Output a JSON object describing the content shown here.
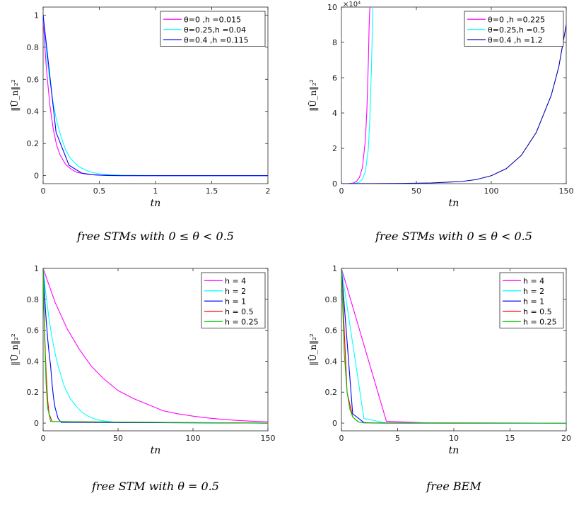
{
  "chart_data": [
    {
      "type": "line",
      "caption": "free STMs with 0 ≤ θ < 0.5",
      "xlabel": "t_n",
      "ylabel": "‖Ū_n‖₂²",
      "xlim": [
        0,
        2
      ],
      "ylim": [
        -0.05,
        1.05
      ],
      "xticks": [
        0,
        0.5,
        1,
        1.5,
        2
      ],
      "xtick_labels": [
        "0",
        "0.5",
        "1",
        "1.5",
        "2"
      ],
      "yticks": [
        0,
        0.2,
        0.4,
        0.6,
        0.8,
        1
      ],
      "ytick_labels": [
        "0",
        "0.2",
        "0.4",
        "0.6",
        "0.8",
        "1"
      ],
      "y_multiplier": "",
      "legend_position": "top-right",
      "grid": false,
      "series": [
        {
          "name": "θ=0     ,h =0.015",
          "color": "#ff00ff",
          "x": [
            0,
            0.015,
            0.03,
            0.06,
            0.09,
            0.12,
            0.15,
            0.2,
            0.25,
            0.3,
            0.4,
            0.5,
            0.7,
            1.0,
            1.5,
            2.0
          ],
          "y": [
            1.0,
            0.81,
            0.66,
            0.44,
            0.29,
            0.19,
            0.13,
            0.07,
            0.04,
            0.02,
            0.008,
            0.003,
            0.001,
            0,
            0,
            0
          ]
        },
        {
          "name": "θ=0.25,h =0.04",
          "color": "#00ffff",
          "x": [
            0,
            0.04,
            0.08,
            0.12,
            0.16,
            0.2,
            0.24,
            0.28,
            0.32,
            0.4,
            0.5,
            0.7,
            1.0,
            1.5,
            2.0
          ],
          "y": [
            1.0,
            0.7,
            0.49,
            0.34,
            0.24,
            0.16,
            0.11,
            0.08,
            0.055,
            0.027,
            0.01,
            0.002,
            0,
            0,
            0
          ]
        },
        {
          "name": "θ=0.4   ,h =0.115",
          "color": "#0000ff",
          "x": [
            0,
            0.115,
            0.23,
            0.345,
            0.46,
            0.575,
            0.69,
            0.805,
            1.0,
            1.5,
            2.0
          ],
          "y": [
            1.0,
            0.27,
            0.065,
            0.015,
            0.004,
            0.001,
            0,
            0,
            0,
            0,
            0
          ]
        }
      ]
    },
    {
      "type": "line",
      "caption": "free STMs with 0 ≤ θ < 0.5",
      "xlabel": "t_n",
      "ylabel": "‖Ū_n‖₂²",
      "xlim": [
        0,
        150
      ],
      "ylim": [
        0,
        100000
      ],
      "xticks": [
        0,
        50,
        100,
        150
      ],
      "xtick_labels": [
        "0",
        "50",
        "100",
        "150"
      ],
      "yticks": [
        0,
        20000,
        40000,
        60000,
        80000,
        100000
      ],
      "ytick_labels": [
        "0",
        "2",
        "4",
        "6",
        "8",
        "10"
      ],
      "y_multiplier": "×10⁴",
      "legend_position": "top-right",
      "grid": false,
      "series": [
        {
          "name": "θ=0     ,h =0.225",
          "color": "#ff00ff",
          "x": [
            0,
            5,
            8,
            10,
            12,
            14,
            16,
            17,
            18,
            18.5,
            19
          ],
          "y": [
            0,
            50,
            400,
            1200,
            3500,
            9000,
            25000,
            42000,
            70000,
            90000,
            100000
          ]
        },
        {
          "name": "θ=0.25,h =0.5",
          "color": "#00ffff",
          "x": [
            0,
            6,
            10,
            12,
            14,
            16,
            18,
            19,
            20,
            21
          ],
          "y": [
            0,
            50,
            300,
            900,
            2500,
            7000,
            20000,
            38000,
            65000,
            100000
          ]
        },
        {
          "name": "θ=0.4   ,h =1.2",
          "color": "#0000aa",
          "x": [
            0,
            20,
            40,
            60,
            80,
            90,
            100,
            110,
            120,
            130,
            140,
            145,
            150
          ],
          "y": [
            0,
            50,
            150,
            400,
            1200,
            2300,
            4500,
            8500,
            16000,
            29000,
            50000,
            66000,
            90000
          ]
        }
      ]
    },
    {
      "type": "line",
      "caption": "free STM with θ = 0.5",
      "xlabel": "t_n",
      "ylabel": "‖Ū_n‖₂²",
      "xlim": [
        0,
        150
      ],
      "ylim": [
        -0.05,
        1
      ],
      "xticks": [
        0,
        50,
        100,
        150
      ],
      "xtick_labels": [
        "0",
        "50",
        "100",
        "150"
      ],
      "yticks": [
        0,
        0.2,
        0.4,
        0.6,
        0.8,
        1
      ],
      "ytick_labels": [
        "0",
        "0.2",
        "0.4",
        "0.6",
        "0.8",
        "1"
      ],
      "y_multiplier": "",
      "legend_position": "top-right",
      "grid": false,
      "series": [
        {
          "name": "h = 4",
          "color": "#ff00ff",
          "x": [
            0,
            8,
            16,
            24,
            32,
            40,
            50,
            60,
            70,
            80,
            90,
            100,
            110,
            120,
            130,
            140,
            150
          ],
          "y": [
            1.0,
            0.78,
            0.61,
            0.48,
            0.37,
            0.29,
            0.21,
            0.16,
            0.12,
            0.08,
            0.06,
            0.045,
            0.033,
            0.024,
            0.017,
            0.012,
            0.008
          ]
        },
        {
          "name": "h = 2",
          "color": "#00ffff",
          "x": [
            0,
            2,
            4,
            6,
            8,
            10,
            14,
            18,
            22,
            26,
            30,
            35,
            40,
            50,
            150
          ],
          "y": [
            1.0,
            0.82,
            0.67,
            0.55,
            0.45,
            0.37,
            0.24,
            0.16,
            0.11,
            0.07,
            0.045,
            0.025,
            0.014,
            0.004,
            0
          ]
        },
        {
          "name": "h = 1",
          "color": "#0000ff",
          "x": [
            0,
            1,
            2,
            3,
            4,
            5,
            6,
            7,
            8,
            10,
            12,
            150
          ],
          "y": [
            1.0,
            0.82,
            0.67,
            0.55,
            0.45,
            0.37,
            0.25,
            0.16,
            0.1,
            0.03,
            0.005,
            0
          ]
        },
        {
          "name": "h = 0.5",
          "color": "#ff0000",
          "x": [
            0,
            0.5,
            1,
            1.5,
            2,
            3,
            4,
            6,
            150
          ],
          "y": [
            1.0,
            0.8,
            0.6,
            0.45,
            0.33,
            0.15,
            0.06,
            0.01,
            0
          ]
        },
        {
          "name": "h = 0.25",
          "color": "#00cc00",
          "x": [
            0,
            0.5,
            1,
            1.5,
            2,
            3,
            5,
            150
          ],
          "y": [
            1.0,
            0.75,
            0.55,
            0.4,
            0.25,
            0.1,
            0.01,
            0
          ]
        }
      ]
    },
    {
      "type": "line",
      "caption": "free BEM",
      "xlabel": "t_n",
      "ylabel": "‖Ū_n‖₂²",
      "xlim": [
        0,
        20
      ],
      "ylim": [
        -0.05,
        1
      ],
      "xticks": [
        0,
        5,
        10,
        15,
        20
      ],
      "xtick_labels": [
        "0",
        "5",
        "10",
        "15",
        "20"
      ],
      "yticks": [
        0,
        0.2,
        0.4,
        0.6,
        0.8,
        1
      ],
      "ytick_labels": [
        "0",
        "0.2",
        "0.4",
        "0.6",
        "0.8",
        "1"
      ],
      "y_multiplier": "",
      "legend_position": "top-right",
      "grid": false,
      "series": [
        {
          "name": "h = 4",
          "color": "#ff00ff",
          "x": [
            0,
            4,
            8,
            12,
            16,
            20
          ],
          "y": [
            1.0,
            0.012,
            0.0002,
            0,
            0,
            0
          ]
        },
        {
          "name": "h = 2",
          "color": "#00ffff",
          "x": [
            0,
            2,
            4,
            6,
            8,
            20
          ],
          "y": [
            1.0,
            0.03,
            0.001,
            0,
            0,
            0
          ]
        },
        {
          "name": "h = 1",
          "color": "#0000ff",
          "x": [
            0,
            1,
            2,
            3,
            4,
            20
          ],
          "y": [
            1.0,
            0.06,
            0.004,
            0.0002,
            0,
            0
          ]
        },
        {
          "name": "h = 0.5",
          "color": "#ff0000",
          "x": [
            0,
            0.5,
            1,
            1.5,
            2,
            20
          ],
          "y": [
            1.0,
            0.2,
            0.04,
            0.008,
            0.0016,
            0
          ]
        },
        {
          "name": "h = 0.25",
          "color": "#00cc00",
          "x": [
            0,
            0.25,
            0.5,
            0.75,
            1,
            1.5,
            2,
            20
          ],
          "y": [
            1.0,
            0.45,
            0.2,
            0.09,
            0.04,
            0.008,
            0.0016,
            0
          ]
        }
      ]
    }
  ]
}
